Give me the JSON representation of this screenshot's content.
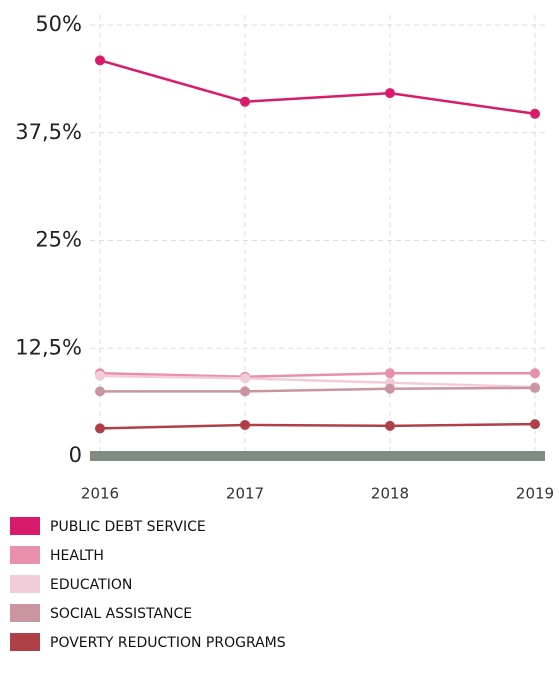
{
  "chart_data": {
    "type": "line",
    "categories": [
      "2016",
      "2017",
      "2018",
      "2019"
    ],
    "series": [
      {
        "name": "PUBLIC DEBT SERVICE",
        "color": "#d81b6a",
        "values": [
          45.9,
          41.1,
          42.1,
          39.7
        ]
      },
      {
        "name": "HEALTH",
        "color": "#e78fab",
        "values": [
          9.6,
          9.2,
          9.6,
          9.6
        ]
      },
      {
        "name": "EDUCATION",
        "color": "#f2cdd9",
        "values": [
          9.3,
          9.0,
          8.5,
          8.0
        ]
      },
      {
        "name": "SOCIAL ASSISTANCE",
        "color": "#c9959f",
        "values": [
          7.5,
          7.5,
          7.8,
          7.9
        ]
      },
      {
        "name": "POVERTY REDUCTION PROGRAMS",
        "color": "#b04048",
        "values": [
          3.2,
          3.6,
          3.5,
          3.7
        ]
      }
    ],
    "ylim": [
      0,
      50
    ],
    "yticks": [
      {
        "value": 0,
        "label": "0"
      },
      {
        "value": 12.5,
        "label": "12,5%"
      },
      {
        "value": 25,
        "label": "25%"
      },
      {
        "value": 37.5,
        "label": "37,5%"
      },
      {
        "value": 50,
        "label": "50%"
      }
    ],
    "grid": true
  }
}
